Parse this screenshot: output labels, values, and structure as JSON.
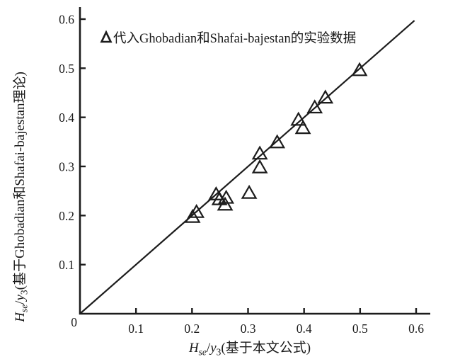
{
  "figure": {
    "background": "#ffffff",
    "ink_color": "#1c1c1c"
  },
  "legend": {
    "marker": "open-triangle-icon",
    "label": "代入Ghobadian和Shafai-bajestan的实验数据"
  },
  "axes": {
    "origin_label": "0",
    "x": {
      "tick_labels": [
        "0.1",
        "0.2",
        "0.3",
        "0.4",
        "0.5",
        "0.6"
      ],
      "label_text": "Hse/y3(基于本文公式)"
    },
    "y": {
      "tick_labels": [
        "0.1",
        "0.2",
        "0.3",
        "0.4",
        "0.5",
        "0.6"
      ],
      "label_text": "Hse/y3(基于Ghobadian和Shafai-bajestan理论)"
    }
  },
  "chart_data": {
    "type": "scatter",
    "title": "",
    "xlabel": "Hse/y3(基于本文公式)",
    "ylabel": "Hse/y3(基于Ghobadian和Shafai-bajestan理论)",
    "xlabel_parts": [
      {
        "text": "H",
        "italic": true
      },
      {
        "text": "se",
        "italic": true,
        "sub": true
      },
      {
        "text": "/"
      },
      {
        "text": "y",
        "italic": true
      },
      {
        "text": "3",
        "sub": true
      },
      {
        "text": "(基于本文公式)"
      }
    ],
    "ylabel_parts": [
      {
        "text": "H",
        "italic": true
      },
      {
        "text": "se",
        "italic": true,
        "sub": true
      },
      {
        "text": "/"
      },
      {
        "text": "y",
        "italic": true
      },
      {
        "text": "3",
        "sub": true
      },
      {
        "text": "(基于Ghobadian和Shafai-bajestan理论)"
      }
    ],
    "xlim": [
      0,
      0.6
    ],
    "ylim": [
      0,
      0.6
    ],
    "xticks": [
      0.1,
      0.2,
      0.3,
      0.4,
      0.5,
      0.6
    ],
    "yticks": [
      0.1,
      0.2,
      0.3,
      0.4,
      0.5,
      0.6
    ],
    "grid": false,
    "legend_position": "top-left-inside",
    "reference_line": {
      "x": [
        0,
        0.597
      ],
      "y": [
        0,
        0.597
      ],
      "style": "solid"
    },
    "series": [
      {
        "name": "代入Ghobadian和Shafai-bajestan的实验数据",
        "marker": "open-triangle",
        "points": [
          [
            0.201,
            0.196
          ],
          [
            0.208,
            0.206
          ],
          [
            0.243,
            0.242
          ],
          [
            0.249,
            0.232
          ],
          [
            0.261,
            0.235
          ],
          [
            0.259,
            0.221
          ],
          [
            0.302,
            0.245
          ],
          [
            0.321,
            0.325
          ],
          [
            0.321,
            0.297
          ],
          [
            0.352,
            0.348
          ],
          [
            0.39,
            0.394
          ],
          [
            0.398,
            0.377
          ],
          [
            0.419,
            0.419
          ],
          [
            0.438,
            0.439
          ],
          [
            0.499,
            0.495
          ]
        ]
      }
    ]
  }
}
